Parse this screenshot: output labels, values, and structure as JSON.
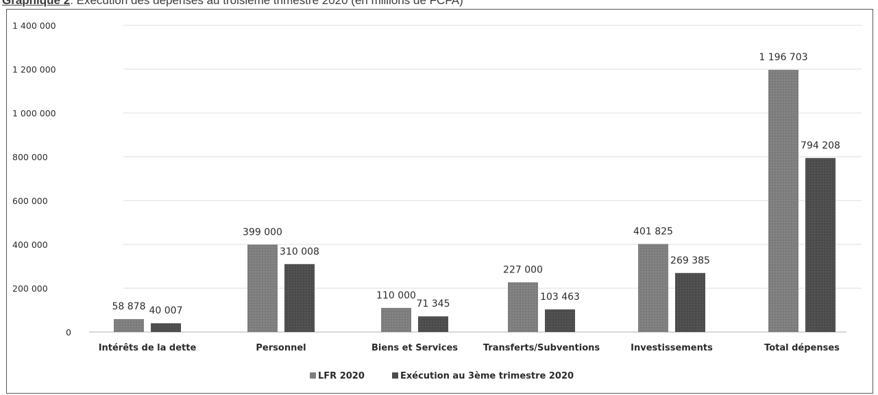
{
  "caption": {
    "lead": "Graphique 2",
    "text": ": Exécution des dépenses au troisième trimestre 2020 (en millions de FCFA)"
  },
  "colors": {
    "series1": "#7f7f7f",
    "series2": "#4d4d4d",
    "grid": "#e4e4e4",
    "axis": "#c8c8c8"
  },
  "chart_data": {
    "type": "bar",
    "title": "",
    "xlabel": "",
    "ylabel": "",
    "ylim": [
      0,
      1400000
    ],
    "grid": true,
    "legend_position": "bottom",
    "y_ticks": [
      "0",
      "200 000",
      "400 000",
      "600 000",
      "800 000",
      "1 000 000",
      "1 200 000",
      "1 400 000"
    ],
    "categories": [
      "Intérêts de la dette",
      "Personnel",
      "Biens et Services",
      "Transferts/Subventions",
      "Investissements",
      "Total dépenses"
    ],
    "series": [
      {
        "name": "LFR  2020",
        "values": [
          58878,
          399000,
          110000,
          227000,
          401825,
          1196703
        ],
        "labels": [
          "58 878",
          "399 000",
          "110 000",
          "227 000",
          "401 825",
          "1 196 703"
        ]
      },
      {
        "name": "Exécution au 3ème trimestre 2020",
        "values": [
          40007,
          310008,
          71345,
          103463,
          269385,
          794208
        ],
        "labels": [
          "40 007",
          "310 008",
          "71 345",
          "103 463",
          "269 385",
          "794 208"
        ]
      }
    ]
  }
}
